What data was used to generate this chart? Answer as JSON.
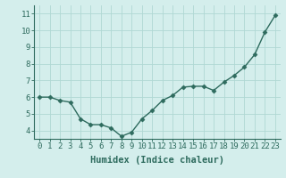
{
  "x": [
    0,
    1,
    2,
    3,
    4,
    5,
    6,
    7,
    8,
    9,
    10,
    11,
    12,
    13,
    14,
    15,
    16,
    17,
    18,
    19,
    20,
    21,
    22,
    23
  ],
  "y": [
    6.0,
    6.0,
    5.8,
    5.7,
    4.7,
    4.35,
    4.35,
    4.15,
    3.65,
    3.9,
    4.7,
    5.2,
    5.8,
    6.1,
    6.6,
    6.65,
    6.65,
    6.4,
    6.9,
    7.3,
    7.8,
    8.55,
    9.9,
    10.9
  ],
  "line_color": "#2e6b5e",
  "marker": "D",
  "marker_size": 2.5,
  "bg_color": "#d4eeec",
  "grid_color": "#b0d8d4",
  "xlabel": "Humidex (Indice chaleur)",
  "xlim": [
    -0.5,
    23.5
  ],
  "ylim": [
    3.5,
    11.5
  ],
  "yticks": [
    4,
    5,
    6,
    7,
    8,
    9,
    10,
    11
  ],
  "xticks": [
    0,
    1,
    2,
    3,
    4,
    5,
    6,
    7,
    8,
    9,
    10,
    11,
    12,
    13,
    14,
    15,
    16,
    17,
    18,
    19,
    20,
    21,
    22,
    23
  ],
  "xlabel_fontsize": 7.5,
  "tick_fontsize": 6.5,
  "axis_color": "#2e6b5e",
  "linewidth": 1.0
}
